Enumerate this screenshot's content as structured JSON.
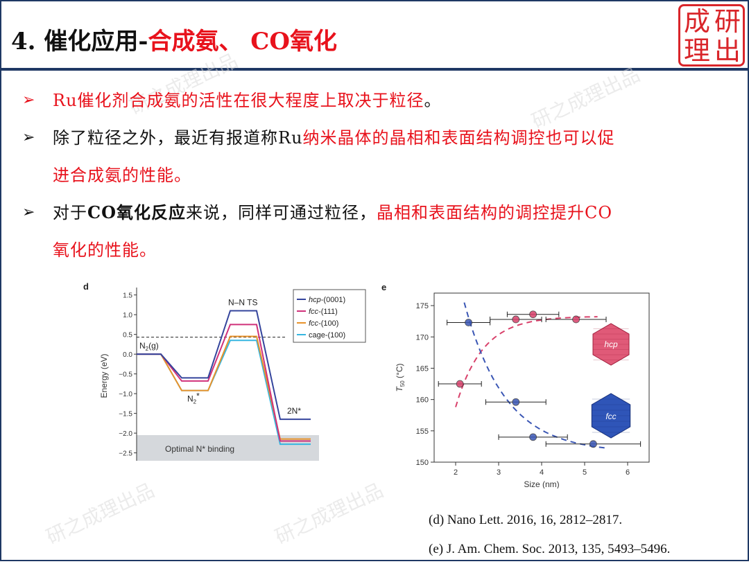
{
  "header": {
    "title_prefix": "4. 催化应用-",
    "title_highlight": "合成氨、 CO氧化"
  },
  "logo": {
    "chars": [
      "成",
      "研",
      "理",
      "出"
    ],
    "color": "#d9252a"
  },
  "bullets": [
    {
      "lines": [
        [
          {
            "t": "Ru催化剂合成氨的活性在很大程度上取决于粒径",
            "c": "red"
          },
          {
            "t": "。",
            "c": "blk"
          }
        ]
      ],
      "mark_color": "red"
    },
    {
      "lines": [
        [
          {
            "t": "除了粒径之外，最近有报道称Ru",
            "c": "blk"
          },
          {
            "t": "纳米晶体的晶相和表面结构调控也可以促",
            "c": "red"
          }
        ],
        [
          {
            "t": "进合成氨的性能。",
            "c": "red"
          }
        ]
      ],
      "mark_color": "blk"
    },
    {
      "lines": [
        [
          {
            "t": "对于",
            "c": "blk"
          },
          {
            "t": "CO氧化反应",
            "c": "blk bold"
          },
          {
            "t": "来说，同样可通过粒径，",
            "c": "blk"
          },
          {
            "t": "晶相和表面结构的调控提升CO",
            "c": "red"
          }
        ],
        [
          {
            "t": "氧化的性能。",
            "c": "red"
          }
        ]
      ],
      "mark_color": "blk"
    }
  ],
  "figure_d": {
    "panel_label": "d",
    "ylabel": "Energy (eV)",
    "yticks": [
      "1.5",
      "1.0",
      "0.5",
      "0.0",
      "−0.5",
      "−1.0",
      "−1.5",
      "−2.0",
      "−2.5"
    ],
    "ann_n2g": "N2(g)",
    "ann_n2star": "N2*",
    "ann_nnts": "N–N TS",
    "ann_2n": "2N*",
    "optimal_label": "Optimal N* binding",
    "legend": [
      {
        "name": "hcp-(0001)",
        "italic": "hcp",
        "rest": "-(0001)",
        "color": "#34449c"
      },
      {
        "name": "fcc-(111)",
        "italic": "fcc",
        "rest": "-(111)",
        "color": "#d0317a"
      },
      {
        "name": "fcc-(100)",
        "italic": "fcc",
        "rest": "-(100)",
        "color": "#e8922a"
      },
      {
        "name": "cage-(100)",
        "italic": "",
        "rest": "cage-(100)",
        "color": "#36b6e0"
      }
    ]
  },
  "figure_e": {
    "panel_label": "e",
    "xlabel": "Size (nm)",
    "ylabel": "T50 (°C)",
    "hcp_label": "hcp",
    "fcc_label": "fcc",
    "hcp_color": "#d8406a",
    "fcc_color": "#3a56b4"
  },
  "chart_data": [
    {
      "type": "line",
      "title": "",
      "ylabel": "Energy (eV)",
      "ylim": [
        -2.7,
        1.6
      ],
      "x": [
        "N2(g)",
        "N2*",
        "N–N TS",
        "2N*"
      ],
      "series": [
        {
          "name": "hcp-(0001)",
          "values": [
            0.0,
            -0.6,
            1.1,
            -1.65
          ]
        },
        {
          "name": "fcc-(111)",
          "values": [
            0.0,
            -0.68,
            0.75,
            -2.2
          ]
        },
        {
          "name": "fcc-(100)",
          "values": [
            0.0,
            -0.92,
            0.45,
            -2.15
          ]
        },
        {
          "name": "cage-(100)",
          "values": [
            0.0,
            -0.92,
            0.35,
            -2.28
          ]
        }
      ],
      "reference_line": 0.43,
      "shaded_region": [
        -2.7,
        -2.05
      ]
    },
    {
      "type": "scatter",
      "title": "",
      "xlabel": "Size (nm)",
      "ylabel": "T50 (°C)",
      "xlim": [
        1.5,
        6.5
      ],
      "ylim": [
        150,
        177
      ],
      "xticks": [
        2,
        3,
        4,
        5,
        6
      ],
      "yticks": [
        150,
        155,
        160,
        165,
        170,
        175
      ],
      "series": [
        {
          "name": "hcp",
          "points": [
            {
              "x": 2.1,
              "y": 162.5,
              "xerr": 0.5
            },
            {
              "x": 3.4,
              "y": 172.8,
              "xerr": 0.6
            },
            {
              "x": 3.8,
              "y": 173.6,
              "xerr": 0.6
            },
            {
              "x": 4.8,
              "y": 172.8,
              "xerr": 0.7
            }
          ]
        },
        {
          "name": "fcc",
          "points": [
            {
              "x": 2.3,
              "y": 172.3,
              "xerr": 0.5
            },
            {
              "x": 3.4,
              "y": 159.6,
              "xerr": 0.7
            },
            {
              "x": 3.8,
              "y": 154.0,
              "xerr": 0.8
            },
            {
              "x": 5.2,
              "y": 152.9,
              "xerr": 1.1
            }
          ]
        }
      ]
    }
  ],
  "references": [
    "(d) Nano Lett. 2016, 16, 2812–2817.",
    "(e) J. Am. Chem. Soc. 2013, 135, 5493–5496."
  ],
  "watermark": "研之成理出品"
}
